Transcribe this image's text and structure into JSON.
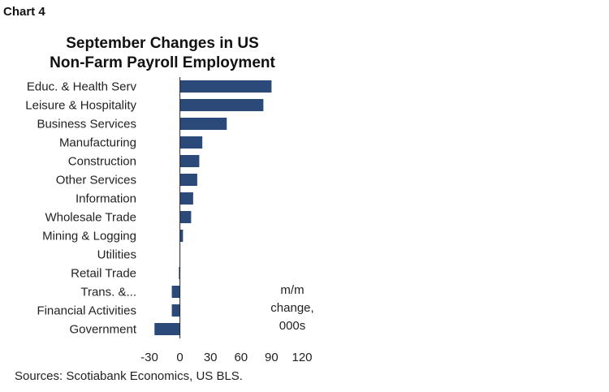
{
  "header": {
    "chart_label": "Chart 4",
    "title_line1": "September Changes in US",
    "title_line2": "Non-Farm Payroll Employment"
  },
  "footer": {
    "source": "Sources: Scotiabank Economics, US BLS."
  },
  "chart_data": {
    "type": "bar",
    "orientation": "horizontal",
    "title": "September Changes in US Non-Farm Payroll Employment",
    "categories": [
      "Educ. & Health Serv",
      "Leisure & Hospitality",
      "Business Services",
      "Manufacturing",
      "Construction",
      "Other Services",
      "Information",
      "Wholesale Trade",
      "Mining & Logging",
      "Utilities",
      "Retail Trade",
      "Trans. &...",
      "Financial Activities",
      "Government"
    ],
    "values": [
      90,
      82,
      46,
      22,
      19,
      17,
      13,
      11,
      3,
      0,
      -1,
      -8,
      -8,
      -25
    ],
    "xlim": [
      -30,
      120
    ],
    "xticks": [
      "-30",
      "0",
      "30",
      "60",
      "90",
      "120"
    ],
    "unit_label_lines": [
      "m/m",
      "change,",
      "000s"
    ],
    "bar_color": "#2b4a7a",
    "grid": false
  }
}
